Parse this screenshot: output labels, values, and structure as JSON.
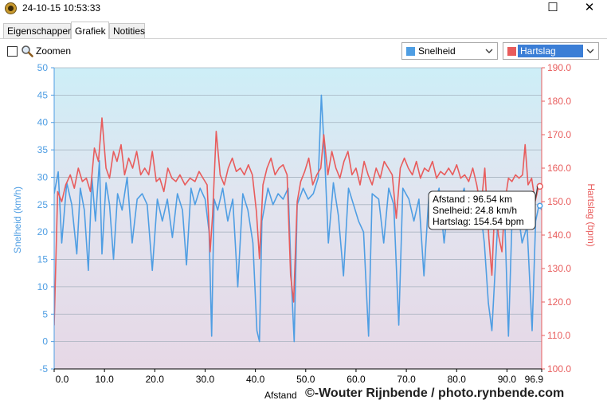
{
  "window": {
    "title": "24-10-15 10:53:33",
    "maximize_glyph": "☐",
    "close_glyph": "✕"
  },
  "tabs": [
    {
      "label": "Eigenschappen",
      "active": false
    },
    {
      "label": "Grafiek",
      "active": true
    },
    {
      "label": "Notities",
      "active": false
    }
  ],
  "toolbar": {
    "zoom_label": "Zoomen",
    "zoom_checked": false,
    "left_dropdown": {
      "label": "Snelheid",
      "color": "#4f9ee3"
    },
    "right_dropdown": {
      "label": "Hartslag",
      "color": "#e85c5c"
    }
  },
  "watermark": "©-Wouter Rijnbende / photo.rynbende.com",
  "chart_data": {
    "type": "line",
    "xlabel": "Afstand",
    "xlim": [
      0,
      96.9
    ],
    "x_ticks": [
      "0.0",
      "10.0",
      "20.0",
      "30.0",
      "40.0",
      "50.0",
      "60.0",
      "70.0",
      "80.0",
      "90.0",
      "96.9"
    ],
    "x_tick_values": [
      0,
      10,
      20,
      30,
      40,
      50,
      60,
      70,
      80,
      90,
      96.9
    ],
    "y_left": {
      "label": "Snelheid (km/h)",
      "lim": [
        -5,
        50
      ],
      "ticks": [
        "50",
        "45",
        "40",
        "35",
        "30",
        "25",
        "20",
        "15",
        "10",
        "5",
        "0",
        "-5"
      ],
      "color": "#4f9ee3"
    },
    "y_right": {
      "label": "Hartslag (bpm)",
      "lim": [
        100,
        190
      ],
      "ticks": [
        "190.0",
        "180.0",
        "170.0",
        "160.0",
        "150.0",
        "140.0",
        "130.0",
        "120.0",
        "110.0",
        "100.0"
      ],
      "color": "#e85c5c"
    },
    "grid": true,
    "series": [
      {
        "axis": "left",
        "color": "#4f9ee3",
        "points": [
          [
            0,
            27
          ],
          [
            0.8,
            31
          ],
          [
            1.5,
            18
          ],
          [
            2.5,
            29
          ],
          [
            3.5,
            25
          ],
          [
            4.5,
            16
          ],
          [
            5.2,
            28
          ],
          [
            6,
            24
          ],
          [
            6.8,
            13
          ],
          [
            7.5,
            30
          ],
          [
            8.2,
            22
          ],
          [
            9,
            33
          ],
          [
            9.5,
            16
          ],
          [
            10.3,
            29
          ],
          [
            11,
            25
          ],
          [
            11.8,
            15
          ],
          [
            12.6,
            27
          ],
          [
            13.5,
            24
          ],
          [
            14.5,
            30
          ],
          [
            15.5,
            18
          ],
          [
            16.5,
            26
          ],
          [
            17.5,
            27
          ],
          [
            18.5,
            25
          ],
          [
            19.5,
            13
          ],
          [
            20.5,
            26
          ],
          [
            21.5,
            22
          ],
          [
            22.5,
            26
          ],
          [
            23.5,
            19
          ],
          [
            24.5,
            27
          ],
          [
            25.5,
            24
          ],
          [
            26.3,
            14
          ],
          [
            27.2,
            28
          ],
          [
            28,
            25
          ],
          [
            29,
            28
          ],
          [
            30,
            26
          ],
          [
            30.8,
            20
          ],
          [
            31.3,
            1
          ],
          [
            31.8,
            26
          ],
          [
            32.5,
            24
          ],
          [
            33.5,
            28
          ],
          [
            34.5,
            22
          ],
          [
            35.5,
            26
          ],
          [
            36.5,
            10
          ],
          [
            37.5,
            27
          ],
          [
            38.5,
            24
          ],
          [
            39.5,
            18
          ],
          [
            40.3,
            2
          ],
          [
            40.8,
            0
          ],
          [
            41.3,
            22
          ],
          [
            42.5,
            28
          ],
          [
            43.5,
            25
          ],
          [
            44.5,
            27
          ],
          [
            45.5,
            26
          ],
          [
            46.5,
            28
          ],
          [
            47.2,
            10
          ],
          [
            47.7,
            0
          ],
          [
            48.3,
            25
          ],
          [
            49.5,
            28
          ],
          [
            50.5,
            26
          ],
          [
            51.5,
            27
          ],
          [
            52.5,
            30
          ],
          [
            53.1,
            45
          ],
          [
            53.8,
            33
          ],
          [
            54.5,
            18
          ],
          [
            55.5,
            29
          ],
          [
            56.5,
            23
          ],
          [
            57.5,
            12
          ],
          [
            58.5,
            28
          ],
          [
            59.5,
            25
          ],
          [
            60.5,
            22
          ],
          [
            61.5,
            20
          ],
          [
            62.5,
            1
          ],
          [
            63.2,
            27
          ],
          [
            64.5,
            26
          ],
          [
            65.5,
            18
          ],
          [
            66.5,
            28
          ],
          [
            67.5,
            25
          ],
          [
            68.5,
            3
          ],
          [
            69.3,
            28
          ],
          [
            70.5,
            26
          ],
          [
            71.5,
            22
          ],
          [
            72.5,
            26
          ],
          [
            73.5,
            12
          ],
          [
            74.5,
            27
          ],
          [
            75.5,
            25
          ],
          [
            76.5,
            28
          ],
          [
            77.5,
            18
          ],
          [
            78.5,
            27
          ],
          [
            79.5,
            26
          ],
          [
            80.5,
            25
          ],
          [
            81.5,
            28
          ],
          [
            82.5,
            22
          ],
          [
            83.5,
            27
          ],
          [
            84.5,
            26
          ],
          [
            85.5,
            18
          ],
          [
            86.3,
            7
          ],
          [
            87,
            2
          ],
          [
            87.7,
            14
          ],
          [
            88.5,
            27
          ],
          [
            89.5,
            24
          ],
          [
            90.3,
            1
          ],
          [
            91,
            22
          ],
          [
            92,
            25
          ],
          [
            93,
            18
          ],
          [
            94,
            21
          ],
          [
            95,
            2
          ],
          [
            95.7,
            22
          ],
          [
            96.4,
            25
          ],
          [
            96.9,
            24
          ]
        ]
      },
      {
        "axis": "right",
        "color": "#e85c5c",
        "points": [
          [
            0,
            113
          ],
          [
            0.7,
            153
          ],
          [
            1.5,
            150
          ],
          [
            2.3,
            155
          ],
          [
            3.2,
            158
          ],
          [
            4,
            154
          ],
          [
            4.8,
            160
          ],
          [
            5.6,
            156
          ],
          [
            6.4,
            157
          ],
          [
            7.2,
            153
          ],
          [
            8,
            166
          ],
          [
            8.8,
            162
          ],
          [
            9.5,
            175
          ],
          [
            10.3,
            160
          ],
          [
            11,
            157
          ],
          [
            11.8,
            165
          ],
          [
            12.5,
            162
          ],
          [
            13.3,
            167
          ],
          [
            14,
            158
          ],
          [
            14.8,
            163
          ],
          [
            15.6,
            160
          ],
          [
            16.4,
            165
          ],
          [
            17.2,
            158
          ],
          [
            18,
            160
          ],
          [
            18.8,
            158
          ],
          [
            19.5,
            165
          ],
          [
            20.3,
            156
          ],
          [
            21,
            157
          ],
          [
            21.8,
            153
          ],
          [
            22.6,
            160
          ],
          [
            23.4,
            157
          ],
          [
            24.2,
            156
          ],
          [
            25,
            158
          ],
          [
            26,
            155
          ],
          [
            27,
            157
          ],
          [
            28,
            156
          ],
          [
            28.8,
            159
          ],
          [
            29.6,
            157
          ],
          [
            30.4,
            155
          ],
          [
            31,
            135
          ],
          [
            31.5,
            146
          ],
          [
            32.2,
            171
          ],
          [
            33,
            158
          ],
          [
            33.8,
            155
          ],
          [
            34.6,
            160
          ],
          [
            35.4,
            163
          ],
          [
            36.2,
            159
          ],
          [
            37,
            160
          ],
          [
            37.8,
            158
          ],
          [
            38.6,
            161
          ],
          [
            39.4,
            158
          ],
          [
            40.2,
            147
          ],
          [
            40.8,
            133
          ],
          [
            41.5,
            155
          ],
          [
            42.3,
            160
          ],
          [
            43.1,
            163
          ],
          [
            43.9,
            158
          ],
          [
            44.7,
            160
          ],
          [
            45.5,
            161
          ],
          [
            46.3,
            158
          ],
          [
            47,
            128
          ],
          [
            47.6,
            120
          ],
          [
            48.3,
            150
          ],
          [
            49,
            156
          ],
          [
            49.8,
            159
          ],
          [
            50.6,
            163
          ],
          [
            51.4,
            155
          ],
          [
            52.2,
            158
          ],
          [
            53,
            160
          ],
          [
            53.6,
            170
          ],
          [
            54.4,
            158
          ],
          [
            55.2,
            165
          ],
          [
            56,
            160
          ],
          [
            56.8,
            157
          ],
          [
            57.6,
            162
          ],
          [
            58.4,
            165
          ],
          [
            59.2,
            158
          ],
          [
            60,
            160
          ],
          [
            60.8,
            155
          ],
          [
            61.6,
            162
          ],
          [
            62.4,
            158
          ],
          [
            63.2,
            155
          ],
          [
            64,
            160
          ],
          [
            64.8,
            157
          ],
          [
            65.6,
            162
          ],
          [
            66.4,
            160
          ],
          [
            67.2,
            158
          ],
          [
            68,
            145
          ],
          [
            68.8,
            160
          ],
          [
            69.6,
            163
          ],
          [
            70.4,
            160
          ],
          [
            71.2,
            158
          ],
          [
            72,
            162
          ],
          [
            72.8,
            157
          ],
          [
            73.6,
            160
          ],
          [
            74.4,
            159
          ],
          [
            75.2,
            162
          ],
          [
            76,
            157
          ],
          [
            76.8,
            159
          ],
          [
            77.6,
            158
          ],
          [
            78.4,
            160
          ],
          [
            79.2,
            158
          ],
          [
            80,
            161
          ],
          [
            80.8,
            157
          ],
          [
            81.6,
            158
          ],
          [
            82.4,
            156
          ],
          [
            83.2,
            160
          ],
          [
            84,
            155
          ],
          [
            84.8,
            148
          ],
          [
            85.6,
            160
          ],
          [
            86.4,
            139
          ],
          [
            87,
            128
          ],
          [
            87.6,
            150
          ],
          [
            88.3,
            140
          ],
          [
            89,
            135
          ],
          [
            89.6,
            150
          ],
          [
            90.3,
            157
          ],
          [
            91,
            156
          ],
          [
            91.7,
            158
          ],
          [
            92.4,
            157
          ],
          [
            93.1,
            158
          ],
          [
            93.6,
            167
          ],
          [
            94.2,
            155
          ],
          [
            94.9,
            157
          ],
          [
            95.6,
            150
          ],
          [
            96.2,
            154
          ],
          [
            96.9,
            155
          ]
        ]
      }
    ],
    "tooltip": {
      "lines": [
        "Afstand  : 96.54 km",
        "Snelheid: 24.8 km/h",
        "Hartslag: 154.54 bpm"
      ],
      "x": 96.54,
      "y_left": 24.8,
      "y_right": 154.54
    }
  }
}
